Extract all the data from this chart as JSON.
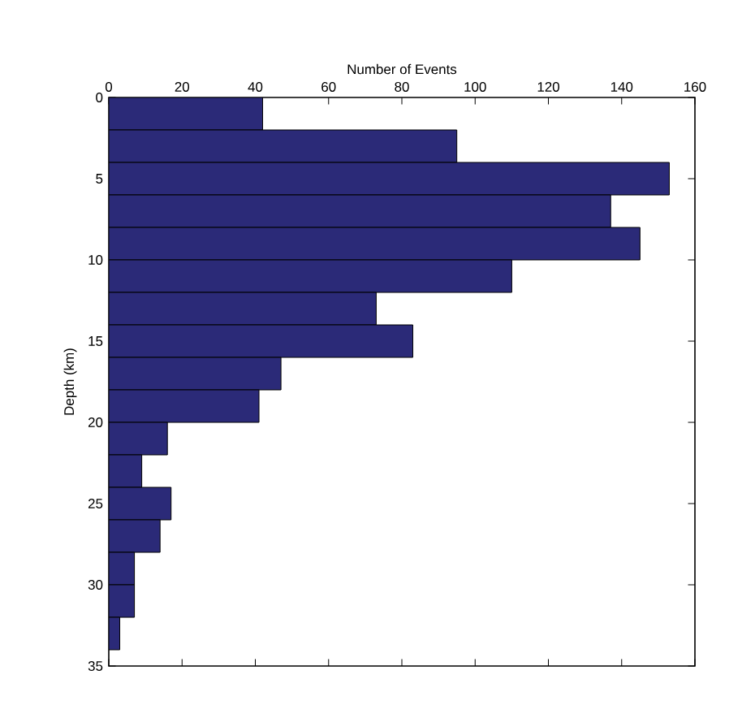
{
  "chart_data": {
    "type": "histogram",
    "orientation": "horizontal",
    "xlabel": "Number of Events",
    "ylabel": "Depth (km)",
    "bins": [
      0,
      2,
      4,
      6,
      8,
      10,
      12,
      14,
      16,
      18,
      20,
      22,
      24,
      26,
      28,
      30,
      32,
      34
    ],
    "values": [
      42,
      95,
      153,
      137,
      145,
      110,
      73,
      83,
      47,
      41,
      16,
      9,
      17,
      14,
      7,
      7,
      3
    ],
    "color": "#2b2a78",
    "xlim": [
      0,
      160
    ],
    "xticks": [
      0,
      20,
      40,
      60,
      80,
      100,
      120,
      140,
      160
    ],
    "ylim": [
      35,
      0
    ],
    "yticks": [
      0,
      5,
      10,
      15,
      20,
      25,
      30,
      35
    ]
  }
}
